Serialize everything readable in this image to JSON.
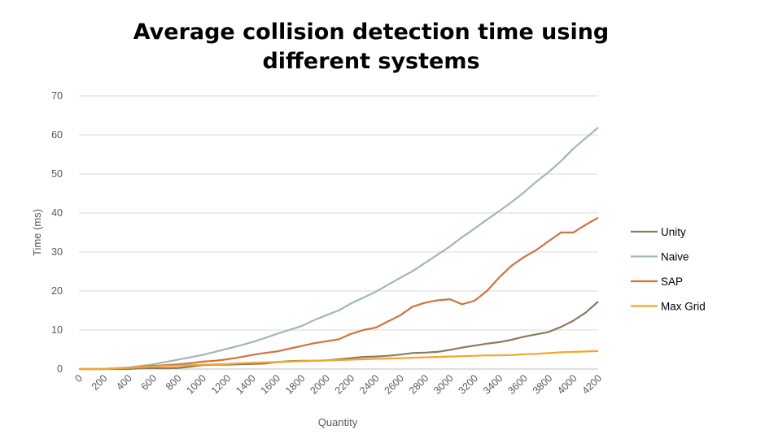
{
  "chart_data": {
    "type": "line",
    "title_lines": [
      "Average collision detection time using",
      "different systems"
    ],
    "xlabel": "Quantity",
    "ylabel": "Time (ms)",
    "ylim": [
      0,
      70
    ],
    "y_ticks": [
      "0",
      "10",
      "20",
      "30",
      "40",
      "50",
      "60",
      "70"
    ],
    "x_ticks": [
      "0",
      "200",
      "400",
      "600",
      "800",
      "1000",
      "1200",
      "1400",
      "1600",
      "1800",
      "2000",
      "2200",
      "2400",
      "2600",
      "2800",
      "3000",
      "3200",
      "3400",
      "3600",
      "3800",
      "4000",
      "4200"
    ],
    "x": [
      0,
      100,
      200,
      300,
      400,
      500,
      600,
      700,
      800,
      900,
      1000,
      1100,
      1200,
      1300,
      1400,
      1500,
      1600,
      1700,
      1800,
      1900,
      2000,
      2100,
      2200,
      2300,
      2400,
      2500,
      2600,
      2700,
      2800,
      2900,
      3000,
      3100,
      3200,
      3300,
      3400,
      3500,
      3600,
      3700,
      3800,
      3900,
      4000,
      4100,
      4200
    ],
    "grid": true,
    "legend_position": "right",
    "series": [
      {
        "name": "Unity",
        "color": "#8c7a5f",
        "values": [
          0,
          0,
          0,
          0,
          0,
          0.2,
          0.2,
          0.2,
          0.3,
          0.6,
          1.0,
          1.1,
          1.1,
          1.2,
          1.3,
          1.4,
          1.8,
          2.0,
          2.1,
          2.1,
          2.2,
          2.5,
          2.8,
          3.1,
          3.2,
          3.4,
          3.7,
          4.1,
          4.2,
          4.4,
          4.9,
          5.5,
          6.0,
          6.5,
          6.9,
          7.5,
          8.3,
          8.9,
          9.5,
          10.8,
          12.4,
          14.5,
          17.3
        ]
      },
      {
        "name": "Naive",
        "color": "#a3b6b8",
        "values": [
          0,
          0,
          0,
          0.2,
          0.4,
          0.8,
          1.2,
          1.8,
          2.4,
          3.0,
          3.6,
          4.4,
          5.2,
          6.0,
          6.9,
          7.9,
          9.0,
          10.0,
          11.0,
          12.5,
          13.8,
          15.0,
          16.8,
          18.3,
          19.8,
          21.6,
          23.4,
          25.1,
          27.2,
          29.3,
          31.4,
          33.8,
          36.0,
          38.3,
          40.5,
          42.8,
          45.3,
          48.0,
          50.5,
          53.3,
          56.5,
          59.2,
          61.9
        ]
      },
      {
        "name": "SAP",
        "color": "#d2713f",
        "values": [
          0,
          0,
          0,
          0.2,
          0.3,
          0.6,
          0.8,
          1.0,
          1.2,
          1.5,
          1.9,
          2.1,
          2.5,
          3.0,
          3.6,
          4.1,
          4.5,
          5.2,
          5.9,
          6.6,
          7.1,
          7.6,
          9.0,
          10.0,
          10.6,
          12.2,
          13.8,
          16.0,
          17.0,
          17.6,
          17.9,
          16.6,
          17.5,
          20.0,
          23.5,
          26.5,
          28.7,
          30.5,
          32.8,
          35.0,
          35.0,
          37.0,
          38.8
        ]
      },
      {
        "name": "Max Grid",
        "color": "#f4a62a",
        "values": [
          0,
          0,
          0,
          0.2,
          0.3,
          0.5,
          0.6,
          0.8,
          0.9,
          1.0,
          1.1,
          1.2,
          1.3,
          1.5,
          1.6,
          1.7,
          1.8,
          1.9,
          2.0,
          2.1,
          2.2,
          2.3,
          2.4,
          2.5,
          2.6,
          2.7,
          2.8,
          2.9,
          3.0,
          3.1,
          3.2,
          3.3,
          3.4,
          3.5,
          3.5,
          3.6,
          3.8,
          3.9,
          4.1,
          4.3,
          4.4,
          4.5,
          4.6
        ]
      }
    ]
  }
}
